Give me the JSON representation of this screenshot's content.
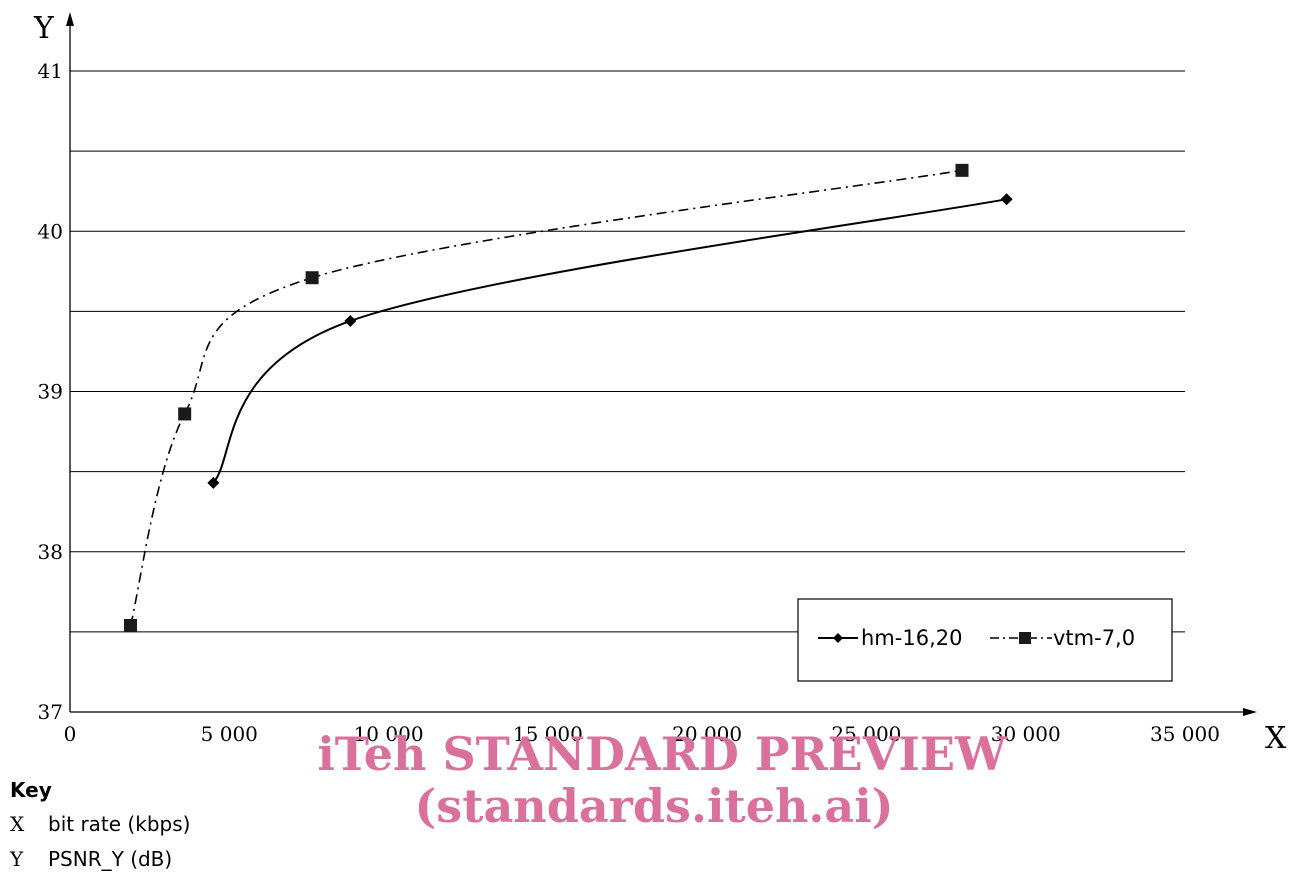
{
  "chart_data": {
    "type": "line",
    "xlabel": "X",
    "ylabel": "Y",
    "xlim": [
      0,
      35000
    ],
    "ylim": [
      37,
      41
    ],
    "x_ticks": [
      0,
      5000,
      10000,
      15000,
      20000,
      25000,
      30000,
      35000
    ],
    "x_tick_labels": [
      "0",
      "5 000",
      "10 000",
      "15 000",
      "20 000",
      "25 000",
      "30 000",
      "35 000"
    ],
    "y_ticks": [
      37,
      38,
      39,
      40,
      41
    ],
    "y_tick_labels": [
      "37",
      "38",
      "39",
      "40",
      "41"
    ],
    "grid_y": [
      37.5,
      38,
      38.5,
      39,
      39.5,
      40,
      40.5,
      41
    ],
    "legend_position": "lower-right",
    "series": [
      {
        "name": "hm-16,20",
        "marker": "diamond",
        "line_style": "solid",
        "points": [
          {
            "x": 4500,
            "y": 38.43
          },
          {
            "x": 8800,
            "y": 39.44
          },
          {
            "x": 29400,
            "y": 40.2
          }
        ]
      },
      {
        "name": "vtm-7,0",
        "marker": "square",
        "line_style": "dash-dot",
        "points": [
          {
            "x": 1900,
            "y": 37.54
          },
          {
            "x": 3600,
            "y": 38.86
          },
          {
            "x": 7600,
            "y": 39.71
          },
          {
            "x": 28000,
            "y": 40.38
          }
        ]
      }
    ]
  },
  "key": {
    "title": "Key",
    "items": [
      {
        "symbol": "X",
        "text": "bit rate (kbps)"
      },
      {
        "symbol": "Y",
        "text": "PSNR_Y (dB)"
      }
    ]
  },
  "watermark": {
    "line1": "iTeh STANDARD PREVIEW",
    "line2": "(standards.iteh.ai)",
    "color": "#d9719c"
  }
}
